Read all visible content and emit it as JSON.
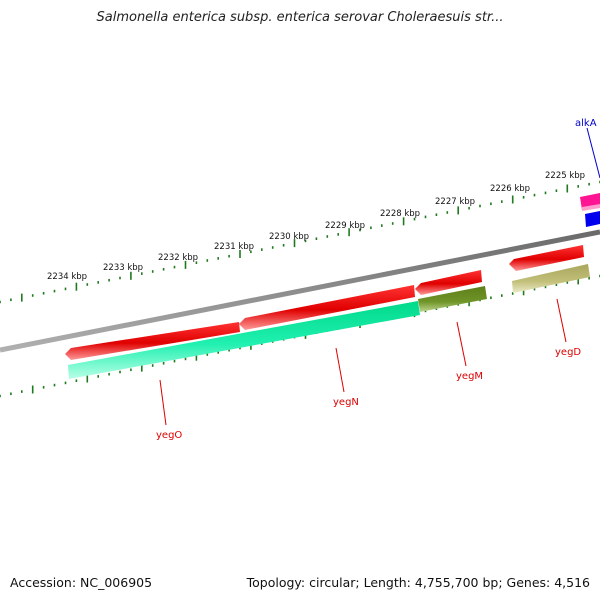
{
  "title": "Salmonella enterica subsp. enterica serovar Choleraesuis str...",
  "footer": {
    "accession": "Accession: NC_006905",
    "summary": "Topology: circular; Length: 4,755,700 bp; Genes: 4,516"
  },
  "scale_labels": [
    "2225 kbp",
    "2226 kbp",
    "2227 kbp",
    "2228 kbp",
    "2229 kbp",
    "2230 kbp",
    "2231 kbp",
    "2232 kbp",
    "2233 kbp",
    "2234 kbp"
  ],
  "genes": [
    {
      "name": "alkA",
      "color": "#0000cc"
    },
    {
      "name": "yegD",
      "color": "#cc0000"
    },
    {
      "name": "yegM",
      "color": "#cc0000"
    },
    {
      "name": "yegN",
      "color": "#cc0000"
    },
    {
      "name": "yegO",
      "color": "#cc0000"
    }
  ],
  "colors": {
    "cds": "#e60000",
    "cds_highlight": "#ff6666",
    "feature_teal": "#1de9a6",
    "feature_olive": "#6b8e23",
    "feature_khaki": "#b5b370",
    "magenta": "#ff1493",
    "blue": "#0000ee",
    "backbone": "#808080",
    "ticks": "#1f7a1f"
  }
}
